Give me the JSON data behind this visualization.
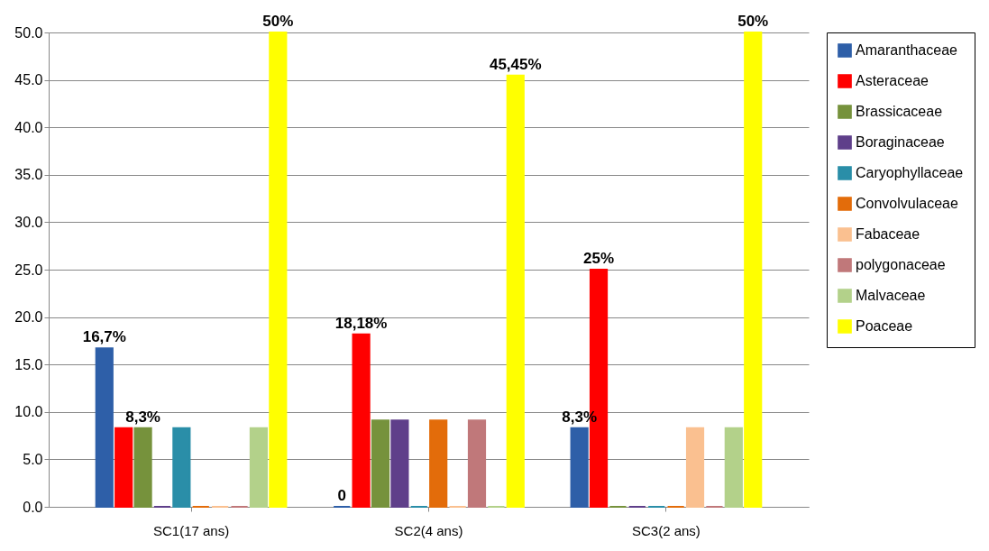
{
  "chart_data": {
    "type": "bar",
    "categories": [
      "SC1(17 ans)",
      "SC2(4 ans)",
      "SC3(2 ans)"
    ],
    "series": [
      {
        "name": "Amaranthaceae",
        "color": "#2e5fa8",
        "values": [
          16.7,
          0,
          8.3
        ],
        "value_labels": [
          "16,7%",
          "0",
          "8,3%"
        ]
      },
      {
        "name": "Asteraceae",
        "color": "#ff0000",
        "values": [
          8.3,
          18.18,
          25
        ],
        "value_labels": [
          null,
          "18,18%",
          "25%"
        ]
      },
      {
        "name": "Brassicaceae",
        "color": "#76923c",
        "values": [
          8.3,
          9.1,
          0
        ],
        "value_labels": [
          "8,3%",
          null,
          null
        ]
      },
      {
        "name": "Boraginaceae",
        "color": "#5f3f8a",
        "values": [
          0,
          9.1,
          0
        ]
      },
      {
        "name": "Caryophyllaceae",
        "color": "#2a8ea8",
        "values": [
          8.3,
          0,
          0
        ]
      },
      {
        "name": "Convolvulaceae",
        "color": "#e36c0a",
        "values": [
          0,
          9.1,
          0
        ]
      },
      {
        "name": "Fabaceae",
        "color": "#fac090",
        "values": [
          0,
          0,
          8.3
        ]
      },
      {
        "name": "polygonaceae",
        "color": "#c0787a",
        "values": [
          0,
          9.1,
          0
        ]
      },
      {
        "name": "Malvaceae",
        "color": "#b3d18a",
        "values": [
          8.3,
          0,
          8.3
        ]
      },
      {
        "name": "Poaceae",
        "color": "#ffff00",
        "values": [
          50,
          45.45,
          50
        ],
        "value_labels": [
          "50%",
          "45,45%",
          "50%"
        ]
      }
    ],
    "ylim": [
      0,
      50
    ],
    "yticks": [
      {
        "value": 0,
        "label": "0.0"
      },
      {
        "value": 5,
        "label": "5.0"
      },
      {
        "value": 10,
        "label": "10.0"
      },
      {
        "value": 15,
        "label": "15.0"
      },
      {
        "value": 20,
        "label": "20.0"
      },
      {
        "value": 25,
        "label": "25.0"
      },
      {
        "value": 30,
        "label": "30.0"
      },
      {
        "value": 35,
        "label": "35.0"
      },
      {
        "value": 40,
        "label": "40.0"
      },
      {
        "value": 45,
        "label": "45.0"
      },
      {
        "value": 50,
        "label": "50.0"
      }
    ],
    "grid": "y",
    "legend": "right"
  }
}
